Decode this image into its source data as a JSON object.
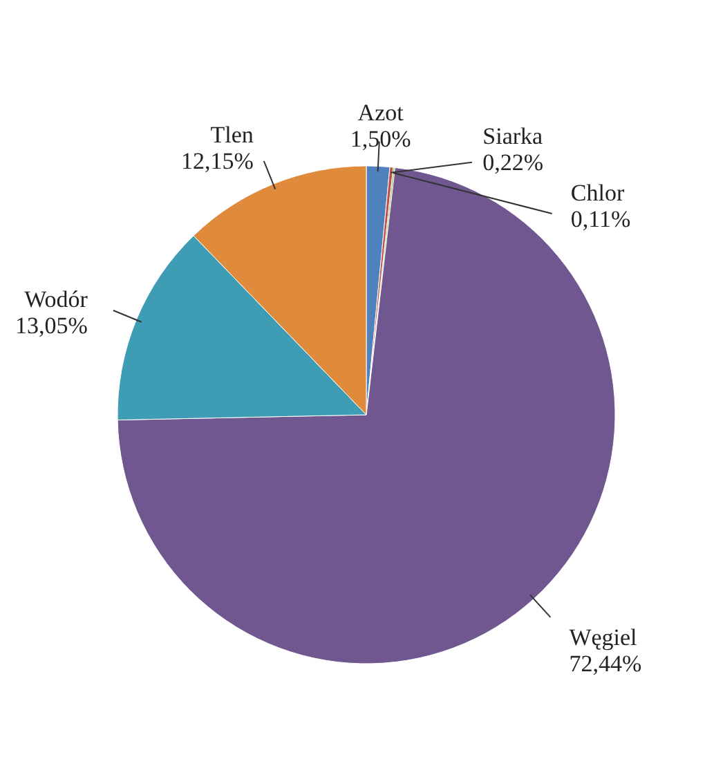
{
  "chart_data": {
    "type": "pie",
    "categories": [
      "Azot",
      "Siarka",
      "Chlor",
      "Węgiel",
      "Wodór",
      "Tlen"
    ],
    "values": [
      1.5,
      0.22,
      0.11,
      72.44,
      13.05,
      12.15
    ],
    "value_labels": [
      "1,50%",
      "0,22%",
      "0,11%",
      "72,44%",
      "13,05%",
      "12,15%"
    ],
    "colors": [
      "#4f81bd",
      "#c0504d",
      "#9bbb59",
      "#70578f",
      "#3e9db4",
      "#e08a3c"
    ]
  }
}
